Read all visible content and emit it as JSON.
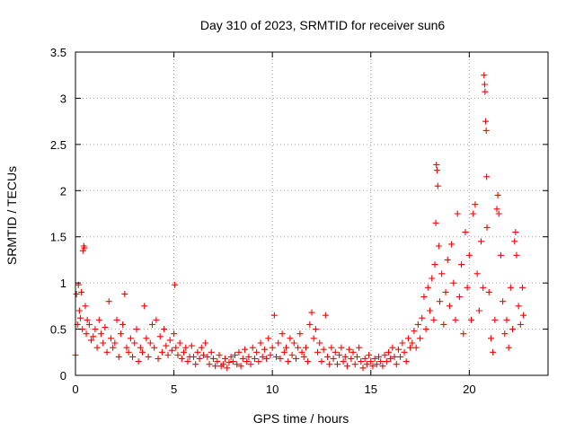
{
  "chart_data": {
    "type": "scatter",
    "title": "Day 310 of 2023, SRMTID for receiver sun6",
    "xlabel": "GPS time / hours",
    "ylabel": "SRMTID / TECUs",
    "xlim": [
      0,
      24
    ],
    "ylim": [
      0,
      3.5
    ],
    "x_ticks": [
      0,
      5,
      10,
      15,
      20
    ],
    "x_tick_labels": [
      "0",
      "5",
      "10",
      "15",
      "20"
    ],
    "y_ticks": [
      0,
      0.5,
      1,
      1.5,
      2,
      2.5,
      3,
      3.5
    ],
    "y_tick_labels": [
      "0",
      "0.5",
      "1",
      "1.5",
      "2",
      "2.5",
      "3",
      "3.5"
    ],
    "grid": true,
    "marker": "plus",
    "color": "#ff0000",
    "series": [
      {
        "name": "SRMTID",
        "points": [
          [
            0.0,
            0.22
          ],
          [
            0.05,
            0.88
          ],
          [
            0.1,
            0.55
          ],
          [
            0.15,
            0.98
          ],
          [
            0.2,
            0.7
          ],
          [
            0.25,
            0.62
          ],
          [
            0.3,
            0.9
          ],
          [
            0.35,
            0.5
          ],
          [
            0.38,
            1.35
          ],
          [
            0.42,
            1.4
          ],
          [
            0.45,
            1.38
          ],
          [
            0.5,
            0.75
          ],
          [
            0.55,
            0.45
          ],
          [
            0.6,
            0.6
          ],
          [
            0.7,
            0.55
          ],
          [
            0.8,
            0.38
          ],
          [
            0.9,
            0.42
          ],
          [
            1.0,
            0.5
          ],
          [
            1.1,
            0.3
          ],
          [
            1.2,
            0.6
          ],
          [
            1.3,
            0.45
          ],
          [
            1.4,
            0.35
          ],
          [
            1.5,
            0.52
          ],
          [
            1.6,
            0.25
          ],
          [
            1.7,
            0.8
          ],
          [
            1.8,
            0.4
          ],
          [
            1.9,
            0.3
          ],
          [
            2.0,
            0.35
          ],
          [
            2.1,
            0.6
          ],
          [
            2.2,
            0.2
          ],
          [
            2.3,
            0.45
          ],
          [
            2.4,
            0.55
          ],
          [
            2.5,
            0.88
          ],
          [
            2.6,
            0.3
          ],
          [
            2.7,
            0.25
          ],
          [
            2.8,
            0.4
          ],
          [
            2.9,
            0.2
          ],
          [
            3.0,
            0.35
          ],
          [
            3.1,
            0.5
          ],
          [
            3.2,
            0.15
          ],
          [
            3.3,
            0.3
          ],
          [
            3.4,
            0.25
          ],
          [
            3.5,
            0.75
          ],
          [
            3.6,
            0.4
          ],
          [
            3.7,
            0.2
          ],
          [
            3.8,
            0.35
          ],
          [
            3.9,
            0.55
          ],
          [
            4.0,
            0.3
          ],
          [
            4.1,
            0.6
          ],
          [
            4.2,
            0.18
          ],
          [
            4.3,
            0.42
          ],
          [
            4.4,
            0.25
          ],
          [
            4.5,
            0.5
          ],
          [
            4.6,
            0.32
          ],
          [
            4.7,
            0.22
          ],
          [
            4.8,
            0.38
          ],
          [
            4.9,
            0.27
          ],
          [
            5.0,
            0.45
          ],
          [
            5.05,
            0.98
          ],
          [
            5.1,
            0.3
          ],
          [
            5.2,
            0.22
          ],
          [
            5.3,
            0.35
          ],
          [
            5.4,
            0.18
          ],
          [
            5.5,
            0.25
          ],
          [
            5.6,
            0.3
          ],
          [
            5.7,
            0.15
          ],
          [
            5.8,
            0.2
          ],
          [
            5.9,
            0.32
          ],
          [
            6.0,
            0.2
          ],
          [
            6.1,
            0.12
          ],
          [
            6.2,
            0.25
          ],
          [
            6.3,
            0.18
          ],
          [
            6.4,
            0.3
          ],
          [
            6.5,
            0.22
          ],
          [
            6.6,
            0.35
          ],
          [
            6.7,
            0.2
          ],
          [
            6.8,
            0.12
          ],
          [
            6.9,
            0.25
          ],
          [
            7.0,
            0.18
          ],
          [
            7.1,
            0.1
          ],
          [
            7.2,
            0.15
          ],
          [
            7.3,
            0.22
          ],
          [
            7.4,
            0.1
          ],
          [
            7.5,
            0.12
          ],
          [
            7.6,
            0.18
          ],
          [
            7.7,
            0.08
          ],
          [
            7.8,
            0.14
          ],
          [
            7.9,
            0.2
          ],
          [
            8.0,
            0.15
          ],
          [
            8.1,
            0.22
          ],
          [
            8.2,
            0.12
          ],
          [
            8.3,
            0.25
          ],
          [
            8.4,
            0.1
          ],
          [
            8.5,
            0.18
          ],
          [
            8.6,
            0.28
          ],
          [
            8.7,
            0.15
          ],
          [
            8.8,
            0.2
          ],
          [
            8.9,
            0.12
          ],
          [
            9.0,
            0.3
          ],
          [
            9.1,
            0.18
          ],
          [
            9.2,
            0.25
          ],
          [
            9.3,
            0.15
          ],
          [
            9.4,
            0.35
          ],
          [
            9.5,
            0.2
          ],
          [
            9.6,
            0.28
          ],
          [
            9.7,
            0.18
          ],
          [
            9.8,
            0.4
          ],
          [
            9.9,
            0.22
          ],
          [
            10.0,
            0.3
          ],
          [
            10.1,
            0.65
          ],
          [
            10.2,
            0.2
          ],
          [
            10.3,
            0.35
          ],
          [
            10.4,
            0.18
          ],
          [
            10.5,
            0.45
          ],
          [
            10.6,
            0.25
          ],
          [
            10.7,
            0.3
          ],
          [
            10.8,
            0.15
          ],
          [
            10.9,
            0.4
          ],
          [
            11.0,
            0.22
          ],
          [
            11.1,
            0.35
          ],
          [
            11.2,
            0.18
          ],
          [
            11.3,
            0.3
          ],
          [
            11.4,
            0.45
          ],
          [
            11.5,
            0.25
          ],
          [
            11.6,
            0.2
          ],
          [
            11.7,
            0.3
          ],
          [
            11.8,
            0.15
          ],
          [
            11.9,
            0.55
          ],
          [
            12.0,
            0.68
          ],
          [
            12.1,
            0.4
          ],
          [
            12.2,
            0.5
          ],
          [
            12.3,
            0.25
          ],
          [
            12.4,
            0.35
          ],
          [
            12.5,
            0.15
          ],
          [
            12.6,
            0.28
          ],
          [
            12.7,
            0.65
          ],
          [
            12.8,
            0.2
          ],
          [
            12.9,
            0.12
          ],
          [
            13.0,
            0.3
          ],
          [
            13.1,
            0.18
          ],
          [
            13.2,
            0.25
          ],
          [
            13.3,
            0.12
          ],
          [
            13.4,
            0.22
          ],
          [
            13.5,
            0.3
          ],
          [
            13.6,
            0.15
          ],
          [
            13.7,
            0.2
          ],
          [
            13.8,
            0.1
          ],
          [
            13.9,
            0.28
          ],
          [
            14.0,
            0.18
          ],
          [
            14.1,
            0.25
          ],
          [
            14.2,
            0.12
          ],
          [
            14.3,
            0.2
          ],
          [
            14.4,
            0.3
          ],
          [
            14.5,
            0.15
          ],
          [
            14.6,
            0.08
          ],
          [
            14.7,
            0.18
          ],
          [
            14.8,
            0.12
          ],
          [
            14.9,
            0.22
          ],
          [
            15.0,
            0.15
          ],
          [
            15.1,
            0.1
          ],
          [
            15.2,
            0.18
          ],
          [
            15.3,
            0.12
          ],
          [
            15.4,
            0.2
          ],
          [
            15.5,
            0.15
          ],
          [
            15.6,
            0.1
          ],
          [
            15.7,
            0.22
          ],
          [
            15.8,
            0.15
          ],
          [
            15.9,
            0.25
          ],
          [
            16.0,
            0.18
          ],
          [
            16.1,
            0.3
          ],
          [
            16.2,
            0.2
          ],
          [
            16.3,
            0.12
          ],
          [
            16.4,
            0.28
          ],
          [
            16.5,
            0.2
          ],
          [
            16.6,
            0.35
          ],
          [
            16.7,
            0.25
          ],
          [
            16.8,
            0.15
          ],
          [
            16.9,
            0.4
          ],
          [
            17.0,
            0.3
          ],
          [
            17.1,
            0.35
          ],
          [
            17.2,
            0.48
          ],
          [
            17.3,
            0.3
          ],
          [
            17.4,
            0.55
          ],
          [
            17.5,
            0.4
          ],
          [
            17.6,
            0.62
          ],
          [
            17.7,
            0.85
          ],
          [
            17.8,
            0.5
          ],
          [
            17.9,
            0.95
          ],
          [
            18.0,
            0.7
          ],
          [
            18.1,
            1.05
          ],
          [
            18.2,
            0.6
          ],
          [
            18.25,
            1.2
          ],
          [
            18.3,
            1.65
          ],
          [
            18.33,
            2.28
          ],
          [
            18.36,
            2.22
          ],
          [
            18.4,
            2.05
          ],
          [
            18.45,
            1.4
          ],
          [
            18.5,
            0.8
          ],
          [
            18.6,
            1.1
          ],
          [
            18.7,
            0.55
          ],
          [
            18.8,
            0.9
          ],
          [
            18.9,
            1.25
          ],
          [
            19.0,
            0.75
          ],
          [
            19.1,
            1.42
          ],
          [
            19.2,
            1.0
          ],
          [
            19.3,
            0.6
          ],
          [
            19.4,
            1.75
          ],
          [
            19.5,
            0.85
          ],
          [
            19.6,
            1.2
          ],
          [
            19.7,
            0.45
          ],
          [
            19.8,
            1.55
          ],
          [
            19.9,
            0.95
          ],
          [
            20.0,
            1.3
          ],
          [
            20.1,
            0.6
          ],
          [
            20.2,
            1.75
          ],
          [
            20.3,
            1.85
          ],
          [
            20.4,
            1.1
          ],
          [
            20.5,
            0.7
          ],
          [
            20.6,
            1.45
          ],
          [
            20.7,
            0.95
          ],
          [
            20.75,
            3.25
          ],
          [
            20.78,
            3.15
          ],
          [
            20.8,
            3.07
          ],
          [
            20.83,
            2.75
          ],
          [
            20.86,
            2.65
          ],
          [
            20.88,
            2.15
          ],
          [
            20.9,
            1.6
          ],
          [
            21.0,
            0.9
          ],
          [
            21.1,
            0.4
          ],
          [
            21.2,
            0.25
          ],
          [
            21.3,
            0.6
          ],
          [
            21.4,
            1.8
          ],
          [
            21.45,
            1.95
          ],
          [
            21.5,
            1.75
          ],
          [
            21.6,
            1.3
          ],
          [
            21.7,
            0.8
          ],
          [
            21.8,
            0.45
          ],
          [
            21.9,
            0.6
          ],
          [
            22.0,
            0.3
          ],
          [
            22.1,
            0.95
          ],
          [
            22.2,
            0.5
          ],
          [
            22.3,
            1.45
          ],
          [
            22.35,
            1.55
          ],
          [
            22.4,
            1.3
          ],
          [
            22.5,
            0.75
          ],
          [
            22.6,
            0.55
          ],
          [
            22.7,
            0.95
          ],
          [
            22.75,
            0.65
          ]
        ]
      }
    ]
  }
}
